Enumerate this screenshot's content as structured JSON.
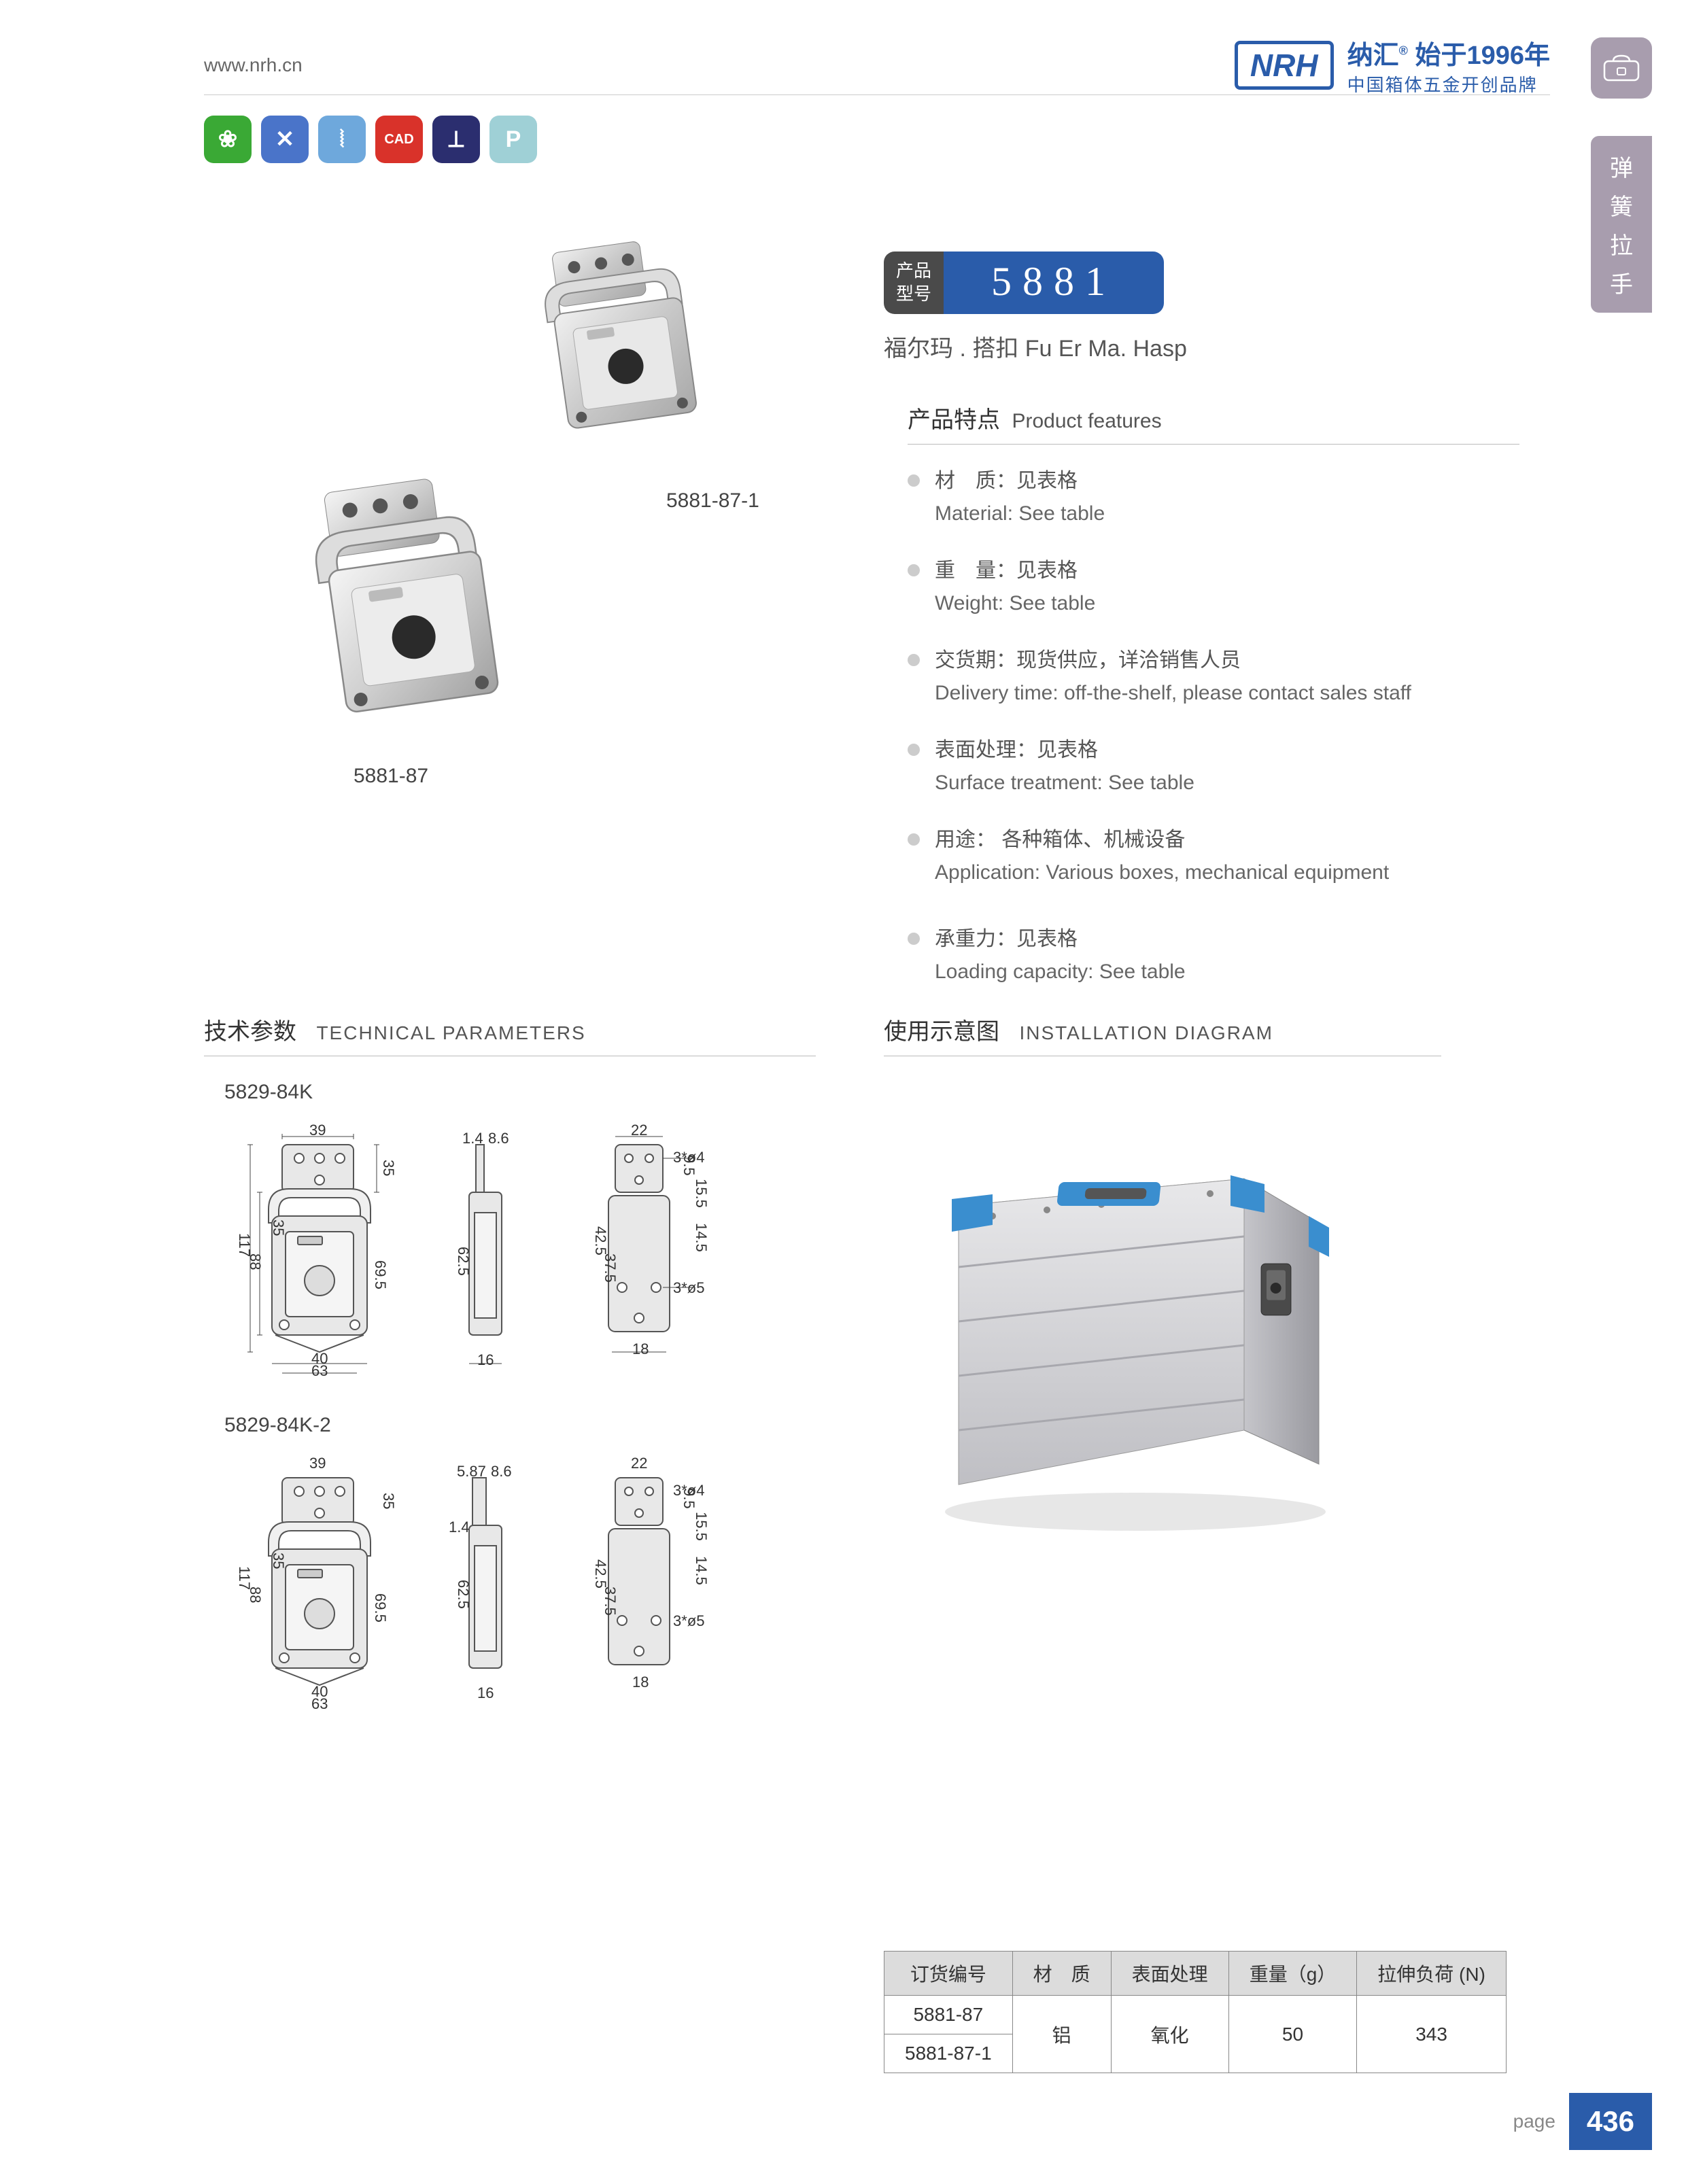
{
  "header": {
    "url": "www.nrh.cn",
    "logo_text": "NRH",
    "brand_cn_1a": "纳汇",
    "brand_cn_1b": "始于",
    "brand_year": "1996年",
    "brand_cn_2": "中国箱体五金开创品牌"
  },
  "side_tab": {
    "c1": "弹",
    "c2": "簧",
    "c3": "拉",
    "c4": "手"
  },
  "icon_row": [
    {
      "name": "eco-icon",
      "bg": "#3aa935",
      "glyph": "❀"
    },
    {
      "name": "tools-icon",
      "bg": "#4a74c9",
      "glyph": "✕"
    },
    {
      "name": "spring-icon",
      "bg": "#6ea8dc",
      "glyph": "⦚"
    },
    {
      "name": "cad-icon",
      "bg": "#d9322a",
      "glyph": "CAD"
    },
    {
      "name": "screw-icon",
      "bg": "#2b2e6f",
      "glyph": "⟂"
    },
    {
      "name": "p-icon",
      "bg": "#9fd0d6",
      "glyph": "P"
    }
  ],
  "product_images": {
    "label1": "5881-87-1",
    "label2": "5881-87"
  },
  "model": {
    "label_l1": "产品",
    "label_l2": "型号",
    "number": "5881",
    "subtitle": "福尔玛 . 搭扣   Fu Er Ma. Hasp"
  },
  "features": {
    "heading_cn": "产品特点",
    "heading_en": "Product features",
    "items": [
      {
        "cn": "材　质：见表格",
        "en": "Material: See table"
      },
      {
        "cn": "重　量：见表格",
        "en": "Weight: See table"
      },
      {
        "cn": "交货期：现货供应，详洽销售人员",
        "en": "Delivery time: off-the-shelf, please contact sales staff"
      },
      {
        "cn": "表面处理：见表格",
        "en": "Surface treatment:  See table"
      },
      {
        "cn": "用途： 各种箱体、机械设备",
        "en": "Application: Various boxes, mechanical equipment"
      },
      {
        "cn": "承重力：见表格",
        "en": "Loading capacity: See table"
      }
    ]
  },
  "tech": {
    "heading_cn": "技术参数",
    "heading_en": "TECHNICAL PARAMETERS",
    "group1_label": "5829-84K",
    "group2_label": "5829-84K-2",
    "dims_front": {
      "top_w": "39",
      "left_h_total": "117",
      "left_h_inner": "88",
      "left_h_inner2": "35",
      "inner_top": "35",
      "inner_h": "69.5",
      "bottom_w_inner": "40",
      "bottom_w_outer": "63"
    },
    "dims_side": {
      "top_t1": "1.4",
      "top_t2": "8.6",
      "h_mid": "62.5",
      "bottom_w": "16"
    },
    "dims_side2": {
      "top_t1": "5.87",
      "top_t2": "8.6",
      "t_small": "1.4",
      "h_mid": "62.5",
      "bottom_w": "16"
    },
    "dims_back": {
      "top_w": "22",
      "hole1": "3*ø4",
      "hole2": "3*ø5",
      "h1": "9.5",
      "h2": "15.5",
      "h3": "14.5",
      "h_main": "42.5",
      "h_inner": "37.5",
      "bottom_w": "18"
    }
  },
  "install": {
    "heading_cn": "使用示意图",
    "heading_en": "INSTALLATION DIAGRAM"
  },
  "spec_table": {
    "headers": [
      "订货编号",
      "材　质",
      "表面处理",
      "重量（g）",
      "拉伸负荷 (N)"
    ],
    "rows": [
      [
        "5881-87",
        "铝",
        "氧化",
        "50",
        "343"
      ],
      [
        "5881-87-1",
        "",
        "",
        "",
        ""
      ]
    ],
    "merged_material": "铝",
    "merged_surface": "氧化",
    "merged_weight": "50",
    "merged_load": "343"
  },
  "footer": {
    "page_label": "page",
    "page_number": "436"
  }
}
